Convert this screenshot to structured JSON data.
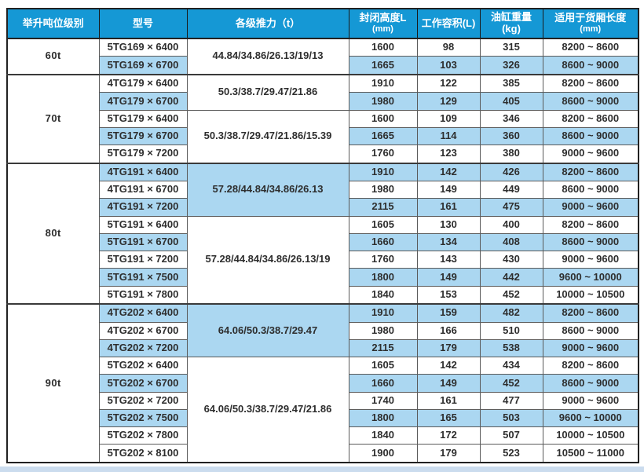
{
  "colors": {
    "header_bg": "#1598D5",
    "header_text": "#ffffff",
    "stripe_blue": "#ABD7F1",
    "body_text": "#2e2e2e",
    "footer_strip": "#CBDCEE"
  },
  "table": {
    "headers": [
      {
        "label": "举升吨位级别",
        "sub": ""
      },
      {
        "label": "型号",
        "sub": ""
      },
      {
        "label": "各级推力（t）",
        "sub": ""
      },
      {
        "label": "封闭高度L",
        "sub": "(mm)"
      },
      {
        "label": "工作容积(L)",
        "sub": ""
      },
      {
        "label": "油缸重量(kg)",
        "sub": ""
      },
      {
        "label": "适用于货厢长度",
        "sub": "(mm)"
      }
    ],
    "groups": [
      {
        "tonnage": "60t",
        "subgroups": [
          {
            "thrust": "44.84/34.86/26.13/19/13",
            "thrust_bg": "white",
            "rows": [
              {
                "model": "5TG169 × 6400",
                "height": "1600",
                "volume": "98",
                "weight": "315",
                "cargo": "8200 ~ 8600",
                "bg": "white"
              },
              {
                "model": "5TG169 × 6700",
                "height": "1665",
                "volume": "103",
                "weight": "326",
                "cargo": "8600 ~ 9000",
                "bg": "blue"
              }
            ]
          }
        ]
      },
      {
        "tonnage": "70t",
        "subgroups": [
          {
            "thrust": "50.3/38.7/29.47/21.86",
            "thrust_bg": "white",
            "rows": [
              {
                "model": "4TG179 × 6400",
                "height": "1910",
                "volume": "122",
                "weight": "385",
                "cargo": "8200 ~ 8600",
                "bg": "white"
              },
              {
                "model": "4TG179 × 6700",
                "height": "1980",
                "volume": "129",
                "weight": "405",
                "cargo": "8600 ~ 9000",
                "bg": "blue"
              }
            ]
          },
          {
            "thrust": "50.3/38.7/29.47/21.86/15.39",
            "thrust_bg": "white",
            "rows": [
              {
                "model": "5TG179 × 6400",
                "height": "1600",
                "volume": "109",
                "weight": "346",
                "cargo": "8200 ~ 8600",
                "bg": "white"
              },
              {
                "model": "5TG179 × 6700",
                "height": "1665",
                "volume": "114",
                "weight": "360",
                "cargo": "8600 ~ 9000",
                "bg": "blue"
              },
              {
                "model": "5TG179 × 7200",
                "height": "1760",
                "volume": "123",
                "weight": "380",
                "cargo": "9000 ~ 9600",
                "bg": "white"
              }
            ]
          }
        ]
      },
      {
        "tonnage": "80t",
        "subgroups": [
          {
            "thrust": "57.28/44.84/34.86/26.13",
            "thrust_bg": "blue",
            "rows": [
              {
                "model": "4TG191 × 6400",
                "height": "1910",
                "volume": "142",
                "weight": "426",
                "cargo": "8200 ~ 8600",
                "bg": "blue"
              },
              {
                "model": "4TG191 × 6700",
                "height": "1980",
                "volume": "149",
                "weight": "449",
                "cargo": "8600 ~ 9000",
                "bg": "white"
              },
              {
                "model": "4TG191 × 7200",
                "height": "2115",
                "volume": "161",
                "weight": "475",
                "cargo": "9000 ~ 9600",
                "bg": "blue"
              }
            ]
          },
          {
            "thrust": "57.28/44.84/34.86/26.13/19",
            "thrust_bg": "white",
            "rows": [
              {
                "model": "5TG191 × 6400",
                "height": "1605",
                "volume": "130",
                "weight": "400",
                "cargo": "8200 ~ 8600",
                "bg": "white"
              },
              {
                "model": "5TG191 × 6700",
                "height": "1660",
                "volume": "134",
                "weight": "408",
                "cargo": "8600 ~ 9000",
                "bg": "blue"
              },
              {
                "model": "5TG191 × 7200",
                "height": "1760",
                "volume": "143",
                "weight": "430",
                "cargo": "9000 ~ 9600",
                "bg": "white"
              },
              {
                "model": "5TG191 × 7500",
                "height": "1800",
                "volume": "149",
                "weight": "442",
                "cargo": "9600 ~ 10000",
                "bg": "blue"
              },
              {
                "model": "5TG191 × 7800",
                "height": "1840",
                "volume": "153",
                "weight": "452",
                "cargo": "10000 ~ 10500",
                "bg": "white"
              }
            ]
          }
        ]
      },
      {
        "tonnage": "90t",
        "subgroups": [
          {
            "thrust": "64.06/50.3/38.7/29.47",
            "thrust_bg": "blue",
            "rows": [
              {
                "model": "4TG202 × 6400",
                "height": "1910",
                "volume": "159",
                "weight": "482",
                "cargo": "8200 ~ 8600",
                "bg": "blue"
              },
              {
                "model": "4TG202 × 6700",
                "height": "1980",
                "volume": "166",
                "weight": "510",
                "cargo": "8600 ~ 9000",
                "bg": "white"
              },
              {
                "model": "4TG202 × 7200",
                "height": "2115",
                "volume": "179",
                "weight": "538",
                "cargo": "9000 ~ 9600",
                "bg": "blue"
              }
            ]
          },
          {
            "thrust": "64.06/50.3/38.7/29.47/21.86",
            "thrust_bg": "white",
            "rows": [
              {
                "model": "5TG202 × 6400",
                "height": "1605",
                "volume": "142",
                "weight": "434",
                "cargo": "8200 ~ 8600",
                "bg": "white"
              },
              {
                "model": "5TG202 × 6700",
                "height": "1660",
                "volume": "149",
                "weight": "452",
                "cargo": "8600 ~ 9000",
                "bg": "blue"
              },
              {
                "model": "5TG202 × 7200",
                "height": "1740",
                "volume": "161",
                "weight": "477",
                "cargo": "9000 ~ 9600",
                "bg": "white"
              },
              {
                "model": "5TG202 × 7500",
                "height": "1800",
                "volume": "165",
                "weight": "503",
                "cargo": "9600 ~ 10000",
                "bg": "blue"
              },
              {
                "model": "5TG202 × 7800",
                "height": "1840",
                "volume": "172",
                "weight": "507",
                "cargo": "10000 ~ 10500",
                "bg": "white"
              },
              {
                "model": "5TG202 × 8100",
                "height": "1900",
                "volume": "179",
                "weight": "523",
                "cargo": "10500 ~ 11000",
                "bg": "white"
              }
            ]
          }
        ]
      }
    ]
  }
}
